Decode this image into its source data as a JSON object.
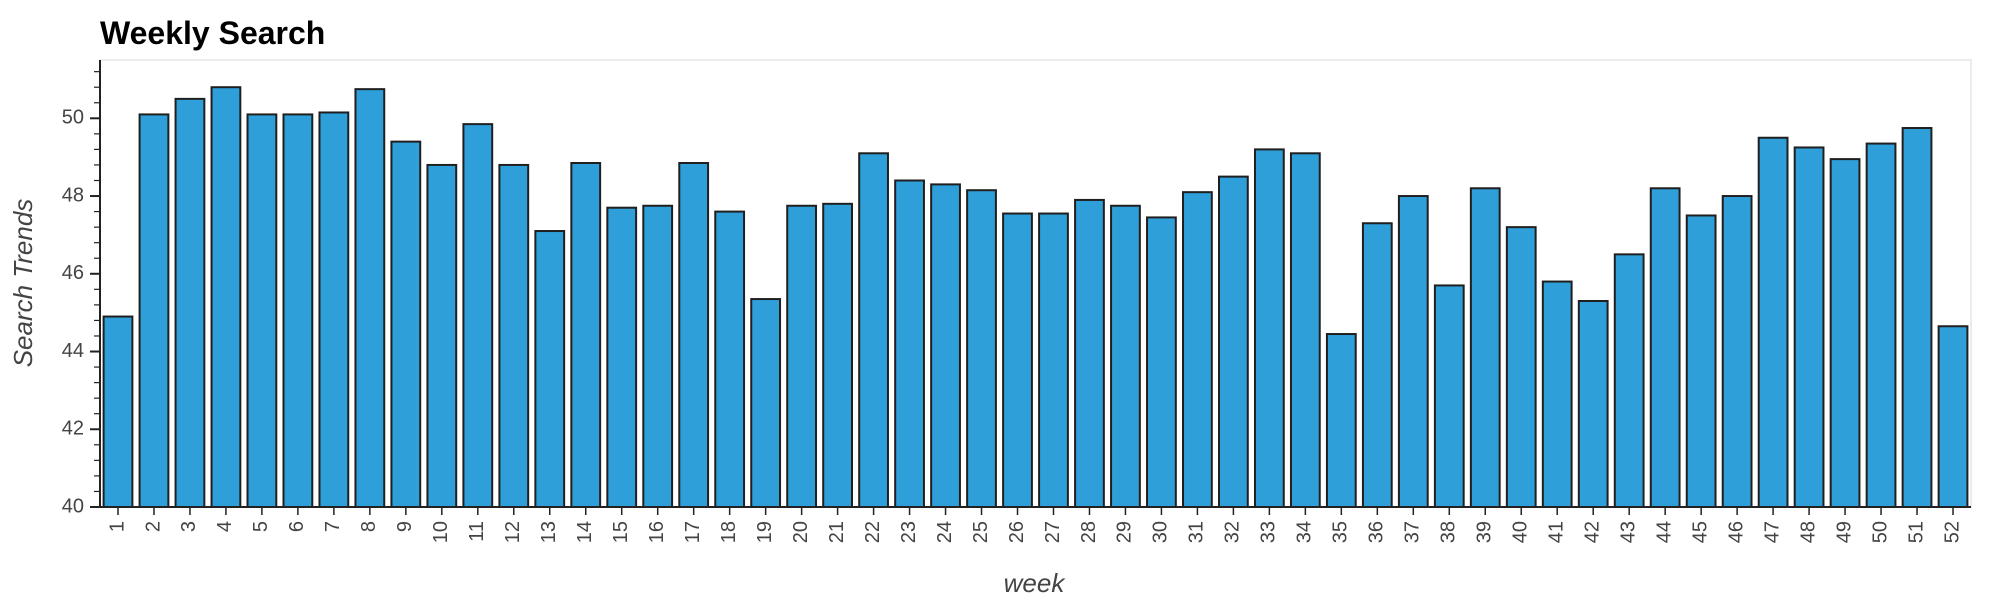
{
  "chart_data": {
    "type": "bar",
    "title": "Weekly Search",
    "xlabel": "week",
    "ylabel": "Search Trends",
    "categories": [
      "1",
      "2",
      "3",
      "4",
      "5",
      "6",
      "7",
      "8",
      "9",
      "10",
      "11",
      "12",
      "13",
      "14",
      "15",
      "16",
      "17",
      "18",
      "19",
      "20",
      "21",
      "22",
      "23",
      "24",
      "25",
      "26",
      "27",
      "28",
      "29",
      "30",
      "31",
      "32",
      "33",
      "34",
      "35",
      "36",
      "37",
      "38",
      "39",
      "40",
      "41",
      "42",
      "43",
      "44",
      "45",
      "46",
      "47",
      "48",
      "49",
      "50",
      "51",
      "52"
    ],
    "values": [
      44.9,
      50.1,
      50.5,
      50.8,
      50.1,
      50.1,
      50.15,
      50.75,
      49.4,
      48.8,
      49.85,
      48.8,
      47.1,
      48.85,
      47.7,
      47.75,
      48.85,
      47.6,
      45.35,
      47.75,
      47.8,
      49.1,
      48.4,
      48.3,
      48.15,
      47.55,
      47.55,
      47.9,
      47.75,
      47.45,
      48.1,
      48.5,
      49.2,
      49.1,
      44.45,
      47.3,
      48.0,
      45.7,
      48.2,
      47.2,
      45.8,
      45.3,
      46.5,
      48.2,
      47.5,
      48.0,
      49.5,
      49.25,
      48.95,
      49.35,
      49.75,
      44.65
    ],
    "yticks": [
      "40",
      "42",
      "44",
      "46",
      "48",
      "50"
    ],
    "ylim": [
      40,
      51.5
    ],
    "grid": false,
    "bar_color": "#2f9fd9",
    "bar_edge_color": "#1f1f1f"
  }
}
